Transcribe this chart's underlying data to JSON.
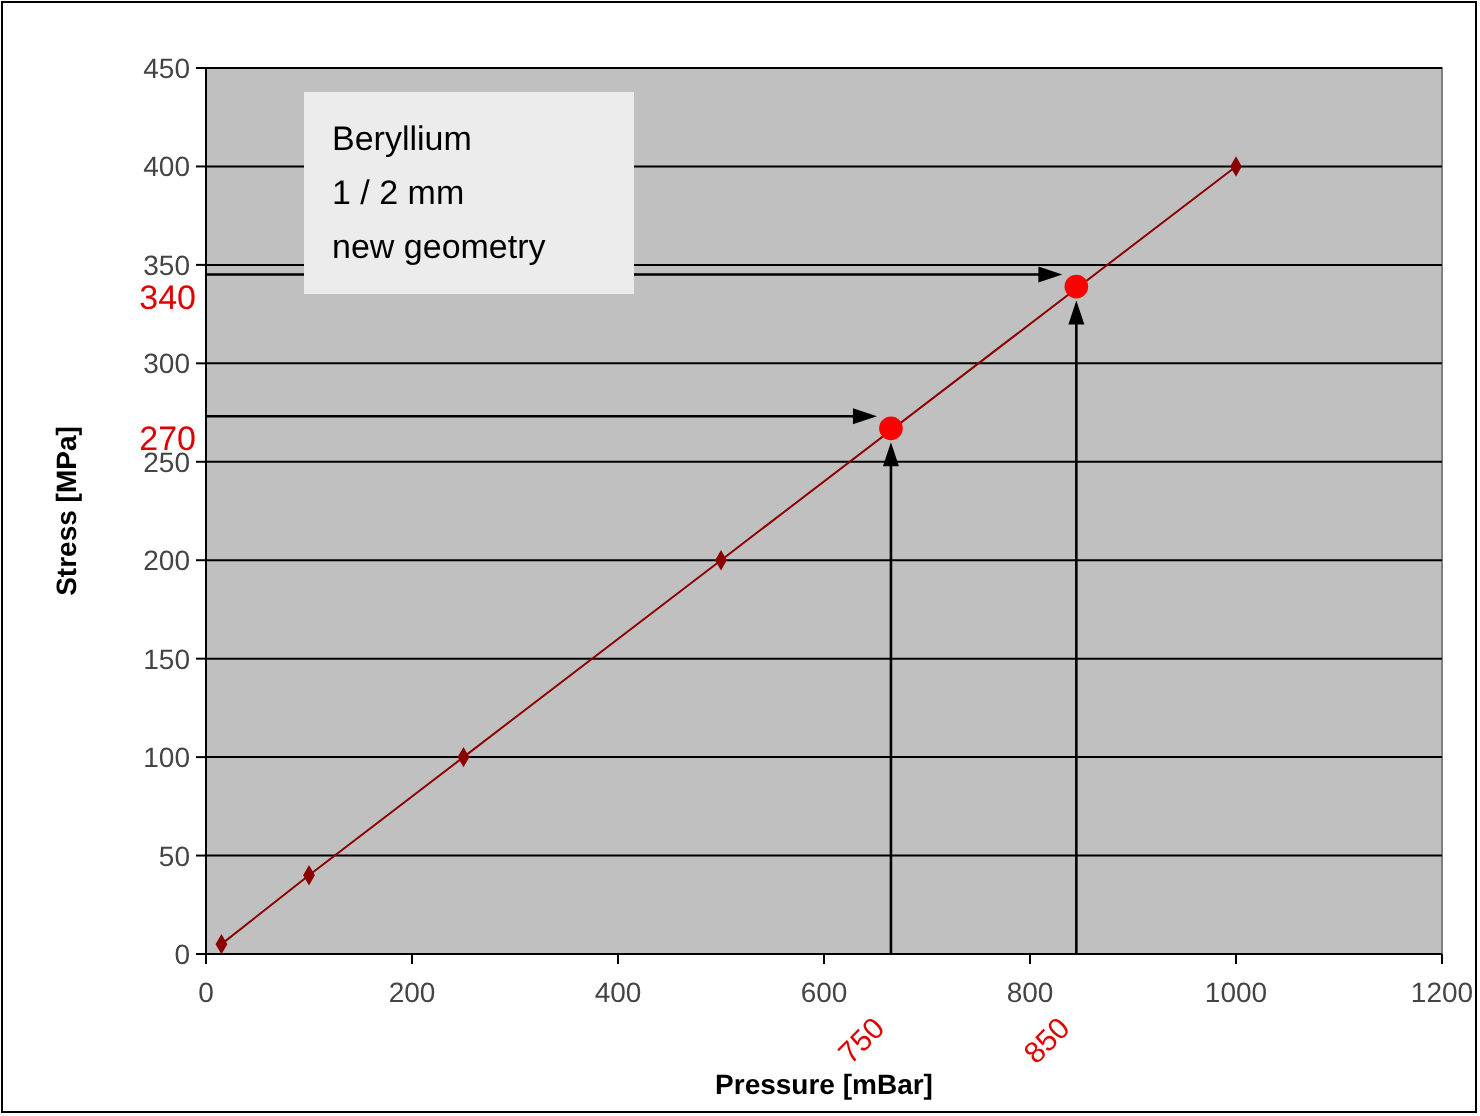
{
  "chart_data": {
    "type": "line",
    "xlabel": "Pressure [mBar]",
    "ylabel": "Stress [MPa]",
    "xlim": [
      0,
      1200
    ],
    "xticks": [
      0,
      200,
      400,
      600,
      800,
      1000,
      1200
    ],
    "ylim": [
      0,
      450
    ],
    "yticks": [
      0,
      50,
      100,
      150,
      200,
      250,
      300,
      350,
      400,
      450
    ],
    "grid": "y",
    "series": [
      {
        "color": "#8b0000",
        "marker": "diamond",
        "x": [
          15,
          100,
          250,
          500,
          1000
        ],
        "values": [
          5,
          40,
          100,
          200,
          400
        ]
      },
      {
        "type": "scatter",
        "color": "#ff0000",
        "marker": "circle",
        "x": [
          665,
          845
        ],
        "values": [
          267,
          339
        ]
      }
    ],
    "annotations": [
      "Beryllium\n1 / 2 mm\nnew geometry",
      "270",
      "340",
      "750",
      "850"
    ]
  }
}
